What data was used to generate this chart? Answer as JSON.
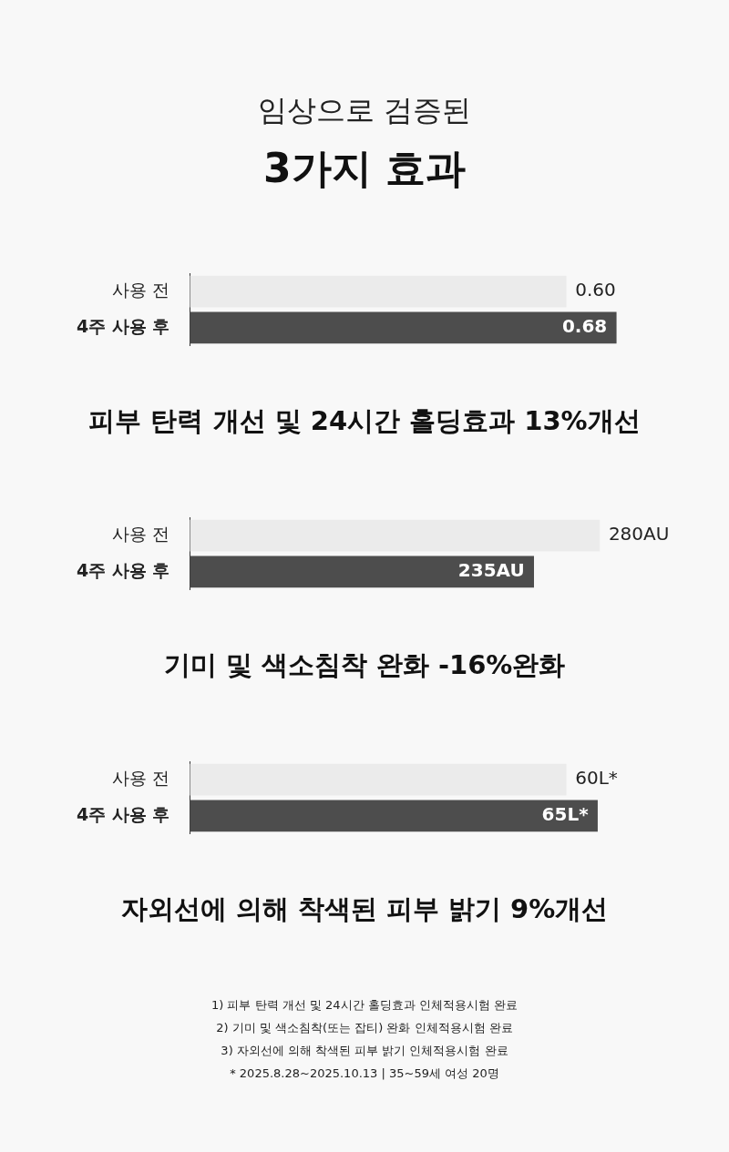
{
  "chart_data": [
    {
      "type": "other",
      "title": "3가지 효과",
      "subtitle": "임상으로 검증된"
    },
    {
      "type": "bar",
      "orientation": "horizontal",
      "categories": [
        "사용 전",
        "4주 사용 후"
      ],
      "values": [
        0.6,
        0.68
      ],
      "value_labels": [
        "0.60",
        "0.68"
      ],
      "colors": [
        "#ebebeb",
        "#4d4d4d"
      ],
      "annotations": [
        "피부 탄력 개선 및 24시간 홀딩효과 13%개선"
      ]
    },
    {
      "type": "bar",
      "orientation": "horizontal",
      "categories": [
        "사용 전",
        "4주 사용 후"
      ],
      "values": [
        280,
        235
      ],
      "value_labels": [
        "280AU",
        "235AU"
      ],
      "colors": [
        "#ebebeb",
        "#4d4d4d"
      ],
      "annotations": [
        "기미 및 색소침착 완화 -16%완화"
      ]
    },
    {
      "type": "bar",
      "orientation": "horizontal",
      "categories": [
        "사용 전",
        "4주 사용 후"
      ],
      "values": [
        60,
        65
      ],
      "value_labels": [
        "60L*",
        "65L*"
      ],
      "colors": [
        "#ebebeb",
        "#4d4d4d"
      ],
      "annotations": [
        "자외선에 의해 착색된 피부 밝기 9%개선"
      ]
    },
    {
      "type": "other",
      "annotations": [
        "1) 피부 탄력 개선 및 24시간 홀딩효과 인체적용시험 완료",
        "2) 기미 및 색소침착(또는 잡티) 완화 인체적용시험 완료",
        "3) 자외선에 의해 착색된 피부 밝기 인체적용시험 완료",
        "* 2025.8.28~2025.10.13  |  35~59세 여성 20명"
      ]
    }
  ]
}
